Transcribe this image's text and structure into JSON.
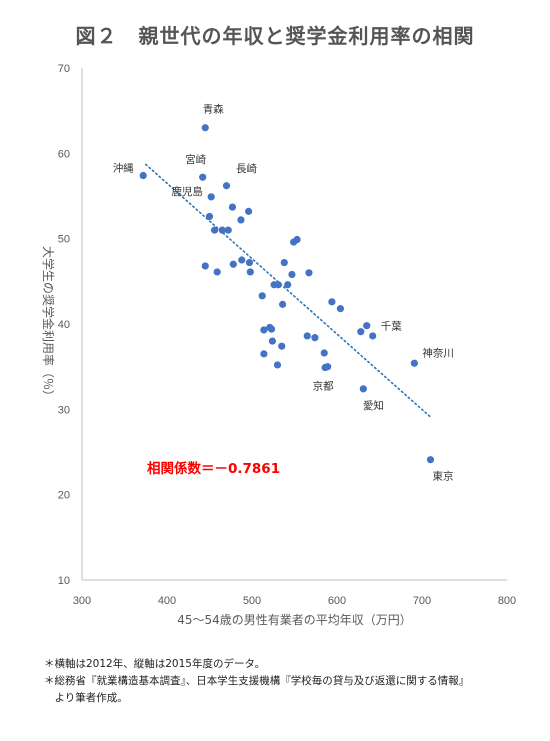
{
  "title": "図２　親世代の年収と奨学金利用率の相関",
  "footnotes": [
    "＊横軸は2012年、縦軸は2015年度のデータ。",
    "＊総務省『就業構造基本調査』、日本学生支援機構『学校毎の貸与及び返還に関する情報』",
    "　より筆者作成。"
  ],
  "chart_data": {
    "type": "scatter",
    "xlabel": "45～54歳の男性有業者の平均年収（万円）",
    "ylabel": "大学生の奨学金利用率（％）",
    "xlim": [
      300,
      800
    ],
    "ylim": [
      10,
      70
    ],
    "xticks": [
      "300",
      "400",
      "500",
      "600",
      "700",
      "800"
    ],
    "yticks": [
      "10",
      "20",
      "30",
      "40",
      "50",
      "60",
      "70"
    ],
    "grid": false,
    "marker_color": "#4472C4",
    "trendline": {
      "style": "dotted",
      "color": "#2E75B6",
      "x": [
        375,
        710
      ],
      "y": [
        58.7,
        29.1
      ]
    },
    "annotation": {
      "text": "相関係数＝－0.7861",
      "color": "#FF0000"
    },
    "points": [
      {
        "x": 372,
        "y": 57.4,
        "label": "沖縄"
      },
      {
        "x": 445,
        "y": 63.0,
        "label": "青森"
      },
      {
        "x": 442,
        "y": 57.2,
        "label": "宮崎"
      },
      {
        "x": 470,
        "y": 56.2,
        "label": "長崎"
      },
      {
        "x": 452,
        "y": 54.9,
        "label": "鹿児島"
      },
      {
        "x": 477,
        "y": 53.7
      },
      {
        "x": 496,
        "y": 53.2
      },
      {
        "x": 450,
        "y": 52.6
      },
      {
        "x": 487,
        "y": 52.2
      },
      {
        "x": 456,
        "y": 51.0
      },
      {
        "x": 465,
        "y": 51.0
      },
      {
        "x": 472,
        "y": 51.0
      },
      {
        "x": 549,
        "y": 49.6
      },
      {
        "x": 553,
        "y": 49.9
      },
      {
        "x": 488,
        "y": 47.5
      },
      {
        "x": 497,
        "y": 47.2
      },
      {
        "x": 445,
        "y": 46.8
      },
      {
        "x": 478,
        "y": 47.0
      },
      {
        "x": 459,
        "y": 46.1
      },
      {
        "x": 498,
        "y": 46.1
      },
      {
        "x": 538,
        "y": 47.2
      },
      {
        "x": 547,
        "y": 45.8
      },
      {
        "x": 567,
        "y": 46.0
      },
      {
        "x": 526,
        "y": 44.6
      },
      {
        "x": 531,
        "y": 44.6
      },
      {
        "x": 542,
        "y": 44.6
      },
      {
        "x": 512,
        "y": 43.3
      },
      {
        "x": 536,
        "y": 42.3
      },
      {
        "x": 594,
        "y": 42.6
      },
      {
        "x": 604,
        "y": 41.8
      },
      {
        "x": 514,
        "y": 39.3
      },
      {
        "x": 523,
        "y": 39.4
      },
      {
        "x": 521,
        "y": 39.6
      },
      {
        "x": 524,
        "y": 38.0
      },
      {
        "x": 565,
        "y": 38.6
      },
      {
        "x": 574,
        "y": 38.4
      },
      {
        "x": 535,
        "y": 37.4
      },
      {
        "x": 514,
        "y": 36.5
      },
      {
        "x": 530,
        "y": 35.2
      },
      {
        "x": 585,
        "y": 36.6
      },
      {
        "x": 589,
        "y": 35.0
      },
      {
        "x": 628,
        "y": 39.1
      },
      {
        "x": 635,
        "y": 39.8,
        "label": "千葉"
      },
      {
        "x": 642,
        "y": 38.6
      },
      {
        "x": 691,
        "y": 35.4,
        "label": "神奈川"
      },
      {
        "x": 586,
        "y": 34.9,
        "label": "京都"
      },
      {
        "x": 631,
        "y": 32.4,
        "label": "愛知"
      },
      {
        "x": 710,
        "y": 24.1,
        "label": "東京"
      }
    ]
  }
}
